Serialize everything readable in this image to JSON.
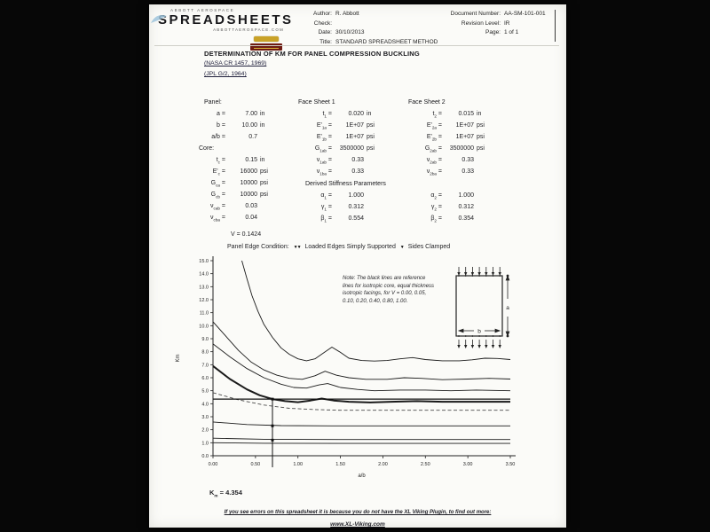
{
  "meta": {
    "eq": "="
  },
  "header": {
    "brand_top": "ABBOTT AEROSPACE",
    "brand_main": "SPREADSHEETS",
    "brand_sub": "ABBOTTAEROSPACE.COM",
    "author_label": "Author:",
    "author": "R. Abbott",
    "check_label": "Check:",
    "check": "",
    "date_label": "Date:",
    "date": "30/10/2013",
    "title_label": "Title:",
    "doc_title_value": "STANDARD SPREADSHEET METHOD",
    "doc_label": "Document Number:",
    "doc_number": "AA-SM-101-001",
    "rev_label": "Revision Level:",
    "rev": "IR",
    "page_label": "Page:",
    "page": "1 of 1"
  },
  "title": "DETERMINATION OF KM FOR PANEL COMPRESSION BUCKLING",
  "references": [
    "(NASA CR 1457, 1969)",
    "(JPL G/2, 1964)"
  ],
  "params": {
    "panel": {
      "header": "Panel:",
      "rows": [
        {
          "base": "a",
          "sub": "",
          "value": "7.00",
          "unit": "in"
        },
        {
          "base": "b",
          "sub": "",
          "value": "10.00",
          "unit": "in"
        },
        {
          "base": "a/b",
          "sub": "",
          "value": "0.7",
          "unit": ""
        }
      ]
    },
    "core": {
      "header": "Core:",
      "rows": [
        {
          "base": "t",
          "sub": "c",
          "value": "0.15",
          "unit": "in"
        },
        {
          "base": "E'",
          "sub": "c",
          "value": "16000",
          "unit": "psi"
        },
        {
          "base": "G",
          "sub": "ca",
          "value": "10000",
          "unit": "psi"
        },
        {
          "base": "G",
          "sub": "cb",
          "value": "10000",
          "unit": "psi"
        },
        {
          "base": "ν",
          "sub": "cab",
          "value": "0.03",
          "unit": ""
        },
        {
          "base": "ν",
          "sub": "cba",
          "value": "0.04",
          "unit": ""
        }
      ]
    },
    "fs1": {
      "header": "Face Sheet 1",
      "rows": [
        {
          "base": "t",
          "sub": "1",
          "value": "0.020",
          "unit": "in"
        },
        {
          "base": "E'",
          "sub": "1a",
          "value": "1E+07",
          "unit": "psi"
        },
        {
          "base": "E'",
          "sub": "1b",
          "value": "1E+07",
          "unit": "psi"
        },
        {
          "base": "G",
          "sub": "1ab",
          "value": "3500000",
          "unit": "psi"
        },
        {
          "base": "ν",
          "sub": "1ab",
          "value": "0.33",
          "unit": ""
        },
        {
          "base": "ν",
          "sub": "1ba",
          "value": "0.33",
          "unit": ""
        }
      ]
    },
    "fs2": {
      "header": "Face Sheet 2",
      "rows": [
        {
          "base": "t",
          "sub": "2",
          "value": "0.015",
          "unit": "in"
        },
        {
          "base": "E'",
          "sub": "2a",
          "value": "1E+07",
          "unit": "psi"
        },
        {
          "base": "E'",
          "sub": "2b",
          "value": "1E+07",
          "unit": "psi"
        },
        {
          "base": "G",
          "sub": "2ab",
          "value": "3500000",
          "unit": "psi"
        },
        {
          "base": "ν",
          "sub": "2ab",
          "value": "0.33",
          "unit": ""
        },
        {
          "base": "ν",
          "sub": "2ba",
          "value": "0.33",
          "unit": ""
        }
      ]
    },
    "derived": {
      "header": "Derived Stiffness Parameters",
      "col1": [
        {
          "base": "α",
          "sub": "1",
          "value": "1.000",
          "unit": ""
        },
        {
          "base": "γ",
          "sub": "1",
          "value": "0.312",
          "unit": ""
        },
        {
          "base": "β",
          "sub": "1",
          "value": "0.554",
          "unit": ""
        }
      ],
      "col2": [
        {
          "base": "α",
          "sub": "2",
          "value": "1.000",
          "unit": ""
        },
        {
          "base": "γ",
          "sub": "2",
          "value": "0.312",
          "unit": ""
        },
        {
          "base": "β",
          "sub": "2",
          "value": "0.354",
          "unit": ""
        }
      ]
    }
  },
  "v_line": {
    "base": "V",
    "value": "0.1424"
  },
  "edge_condition": {
    "label": "Panel Edge Condition:",
    "loaded": "Loaded Edges Simply Supported",
    "sides": "Sides Clamped"
  },
  "diagram": {
    "width_label": "b",
    "height_label": "a"
  },
  "result": {
    "base": "K",
    "sub": "m",
    "value": "4.354"
  },
  "footer": {
    "line1": "If you see errors on this spreadsheet it is because you do not have the XL Viking Plugin, to find out more:",
    "line2": "www.XL-Viking.com"
  },
  "chart_data": {
    "type": "line",
    "xlabel": "a/b",
    "ylabel": "Km",
    "xlim": [
      0,
      3.5
    ],
    "ylim": [
      0,
      15
    ],
    "xticks": [
      "0.00",
      "0.50",
      "1.00",
      "1.50",
      "2.00",
      "2.50",
      "3.00",
      "3.50"
    ],
    "yticks": [
      "0.0",
      "1.0",
      "2.0",
      "3.0",
      "4.0",
      "5.0",
      "6.0",
      "7.0",
      "8.0",
      "9.0",
      "10.0",
      "11.0",
      "12.0",
      "13.0",
      "14.0",
      "15.0"
    ],
    "grid": false,
    "legend": false,
    "note": "Note: The black lines are reference lines for isotropic core, equal thickness isotropic facings, for V = 0.00, 0.05, 0.10, 0.20, 0.40, 0.80, 1.00.",
    "series": [
      {
        "name": "V = 0.00",
        "points": [
          [
            0.34,
            15
          ],
          [
            0.4,
            13.6
          ],
          [
            0.46,
            12.3
          ],
          [
            0.53,
            11.1
          ],
          [
            0.6,
            10.1
          ],
          [
            0.7,
            9.1
          ],
          [
            0.8,
            8.3
          ],
          [
            0.9,
            7.8
          ],
          [
            1.0,
            7.45
          ],
          [
            1.1,
            7.3
          ],
          [
            1.2,
            7.45
          ],
          [
            1.3,
            7.9
          ],
          [
            1.4,
            8.35
          ],
          [
            1.5,
            7.95
          ],
          [
            1.6,
            7.5
          ],
          [
            1.75,
            7.32
          ],
          [
            1.9,
            7.28
          ],
          [
            2.05,
            7.32
          ],
          [
            2.2,
            7.45
          ],
          [
            2.35,
            7.55
          ],
          [
            2.5,
            7.4
          ],
          [
            2.7,
            7.3
          ],
          [
            2.9,
            7.3
          ],
          [
            3.05,
            7.38
          ],
          [
            3.2,
            7.5
          ],
          [
            3.35,
            7.48
          ],
          [
            3.5,
            7.4
          ]
        ]
      },
      {
        "name": "V = 0.05",
        "points": [
          [
            0,
            10.3
          ],
          [
            0.15,
            9.2
          ],
          [
            0.3,
            8.1
          ],
          [
            0.45,
            7.2
          ],
          [
            0.6,
            6.6
          ],
          [
            0.75,
            6.2
          ],
          [
            0.9,
            5.95
          ],
          [
            1.05,
            5.88
          ],
          [
            1.2,
            6.15
          ],
          [
            1.32,
            6.5
          ],
          [
            1.45,
            6.2
          ],
          [
            1.6,
            6.0
          ],
          [
            1.8,
            5.88
          ],
          [
            2.05,
            5.88
          ],
          [
            2.25,
            6.0
          ],
          [
            2.45,
            5.95
          ],
          [
            2.7,
            5.85
          ],
          [
            3.0,
            5.9
          ],
          [
            3.25,
            5.95
          ],
          [
            3.5,
            5.9
          ]
        ]
      },
      {
        "name": "V = 0.10",
        "points": [
          [
            0,
            8.6
          ],
          [
            0.2,
            7.6
          ],
          [
            0.4,
            6.7
          ],
          [
            0.6,
            6.0
          ],
          [
            0.8,
            5.5
          ],
          [
            0.95,
            5.25
          ],
          [
            1.1,
            5.2
          ],
          [
            1.25,
            5.45
          ],
          [
            1.35,
            5.55
          ],
          [
            1.5,
            5.25
          ],
          [
            1.7,
            5.1
          ],
          [
            1.9,
            5.0
          ],
          [
            2.2,
            5.05
          ],
          [
            2.5,
            5.05
          ],
          [
            2.8,
            5.0
          ],
          [
            3.1,
            5.05
          ],
          [
            3.5,
            5.0
          ]
        ]
      },
      {
        "name": "V = 0.1424 (panel)",
        "emphasis": true,
        "points": [
          [
            0,
            6.9
          ],
          [
            0.2,
            5.9
          ],
          [
            0.4,
            5.1
          ],
          [
            0.55,
            4.65
          ],
          [
            0.7,
            4.354
          ],
          [
            0.85,
            4.2
          ],
          [
            1.0,
            4.12
          ],
          [
            1.15,
            4.25
          ],
          [
            1.28,
            4.4
          ],
          [
            1.42,
            4.25
          ],
          [
            1.6,
            4.15
          ],
          [
            1.85,
            4.1
          ],
          [
            2.1,
            4.15
          ],
          [
            2.4,
            4.2
          ],
          [
            2.7,
            4.15
          ],
          [
            3.0,
            4.15
          ],
          [
            3.5,
            4.15
          ]
        ]
      },
      {
        "name": "V = 0.20",
        "dashed": true,
        "points": [
          [
            0,
            4.85
          ],
          [
            0.3,
            4.3
          ],
          [
            0.6,
            3.9
          ],
          [
            0.9,
            3.65
          ],
          [
            1.2,
            3.55
          ],
          [
            1.5,
            3.5
          ],
          [
            1.9,
            3.5
          ],
          [
            2.4,
            3.5
          ],
          [
            2.9,
            3.5
          ],
          [
            3.5,
            3.5
          ]
        ]
      },
      {
        "name": "V = 0.40",
        "points": [
          [
            0,
            2.6
          ],
          [
            0.4,
            2.4
          ],
          [
            0.8,
            2.32
          ],
          [
            1.4,
            2.3
          ],
          [
            2.2,
            2.3
          ],
          [
            3.5,
            2.3
          ]
        ]
      },
      {
        "name": "V = 0.80",
        "points": [
          [
            0,
            1.35
          ],
          [
            0.6,
            1.27
          ],
          [
            1.5,
            1.25
          ],
          [
            3.5,
            1.25
          ]
        ]
      },
      {
        "name": "V = 1.00",
        "points": [
          [
            0,
            1.0
          ],
          [
            0.6,
            0.96
          ],
          [
            1.5,
            0.95
          ],
          [
            3.5,
            0.95
          ]
        ]
      }
    ],
    "markers": {
      "vline_x": 0.7,
      "vline_y_top": 4.354,
      "marker_ys": [
        4.354,
        2.3,
        1.2
      ],
      "result_y": 4.354
    }
  }
}
